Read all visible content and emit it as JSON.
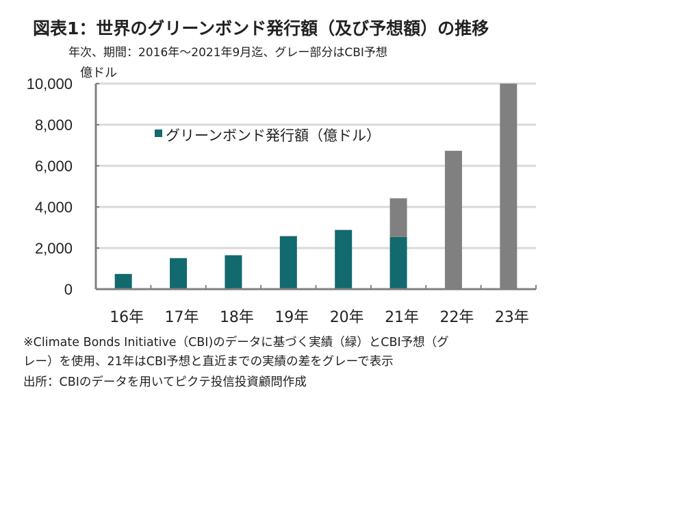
{
  "chart_data": {
    "type": "bar",
    "title": "図表1：世界のグリーンボンド発行額（及び予想額）の推移",
    "subtitle": "年次、期間：2016年～2021年9月迄、グレー部分はCBI予想",
    "ylabel": "億ドル",
    "xlabel": "",
    "ylim": [
      0,
      10000
    ],
    "yticks": [
      "0",
      "2,000",
      "4,000",
      "6,000",
      "8,000",
      "10,000"
    ],
    "ytick_values": [
      0,
      2000,
      4000,
      6000,
      8000,
      10000
    ],
    "categories": [
      "16年",
      "17年",
      "18年",
      "19年",
      "20年",
      "21年",
      "22年",
      "23年"
    ],
    "series": [
      {
        "name": "グリーンボンド発行額（億ドル）",
        "color": "#12696e",
        "values": [
          740,
          1510,
          1650,
          2580,
          2880,
          2540,
          0,
          0
        ]
      },
      {
        "name": "CBI予想",
        "color": "#808080",
        "values": [
          0,
          0,
          0,
          0,
          0,
          1880,
          6730,
          10000
        ]
      }
    ],
    "legend": {
      "label": "グリーンボンド発行額（億ドル）",
      "position": "top-left"
    },
    "grid": true
  },
  "notes": [
    "※Climate Bonds Initiative（CBI)のデータに基づく実績（緑）とCBI予想（グ",
    "レー）を使用、21年はCBI予想と直近までの実績の差をグレーで表示",
    "出所：CBIのデータを用いてピクテ投信投資顧問作成"
  ]
}
